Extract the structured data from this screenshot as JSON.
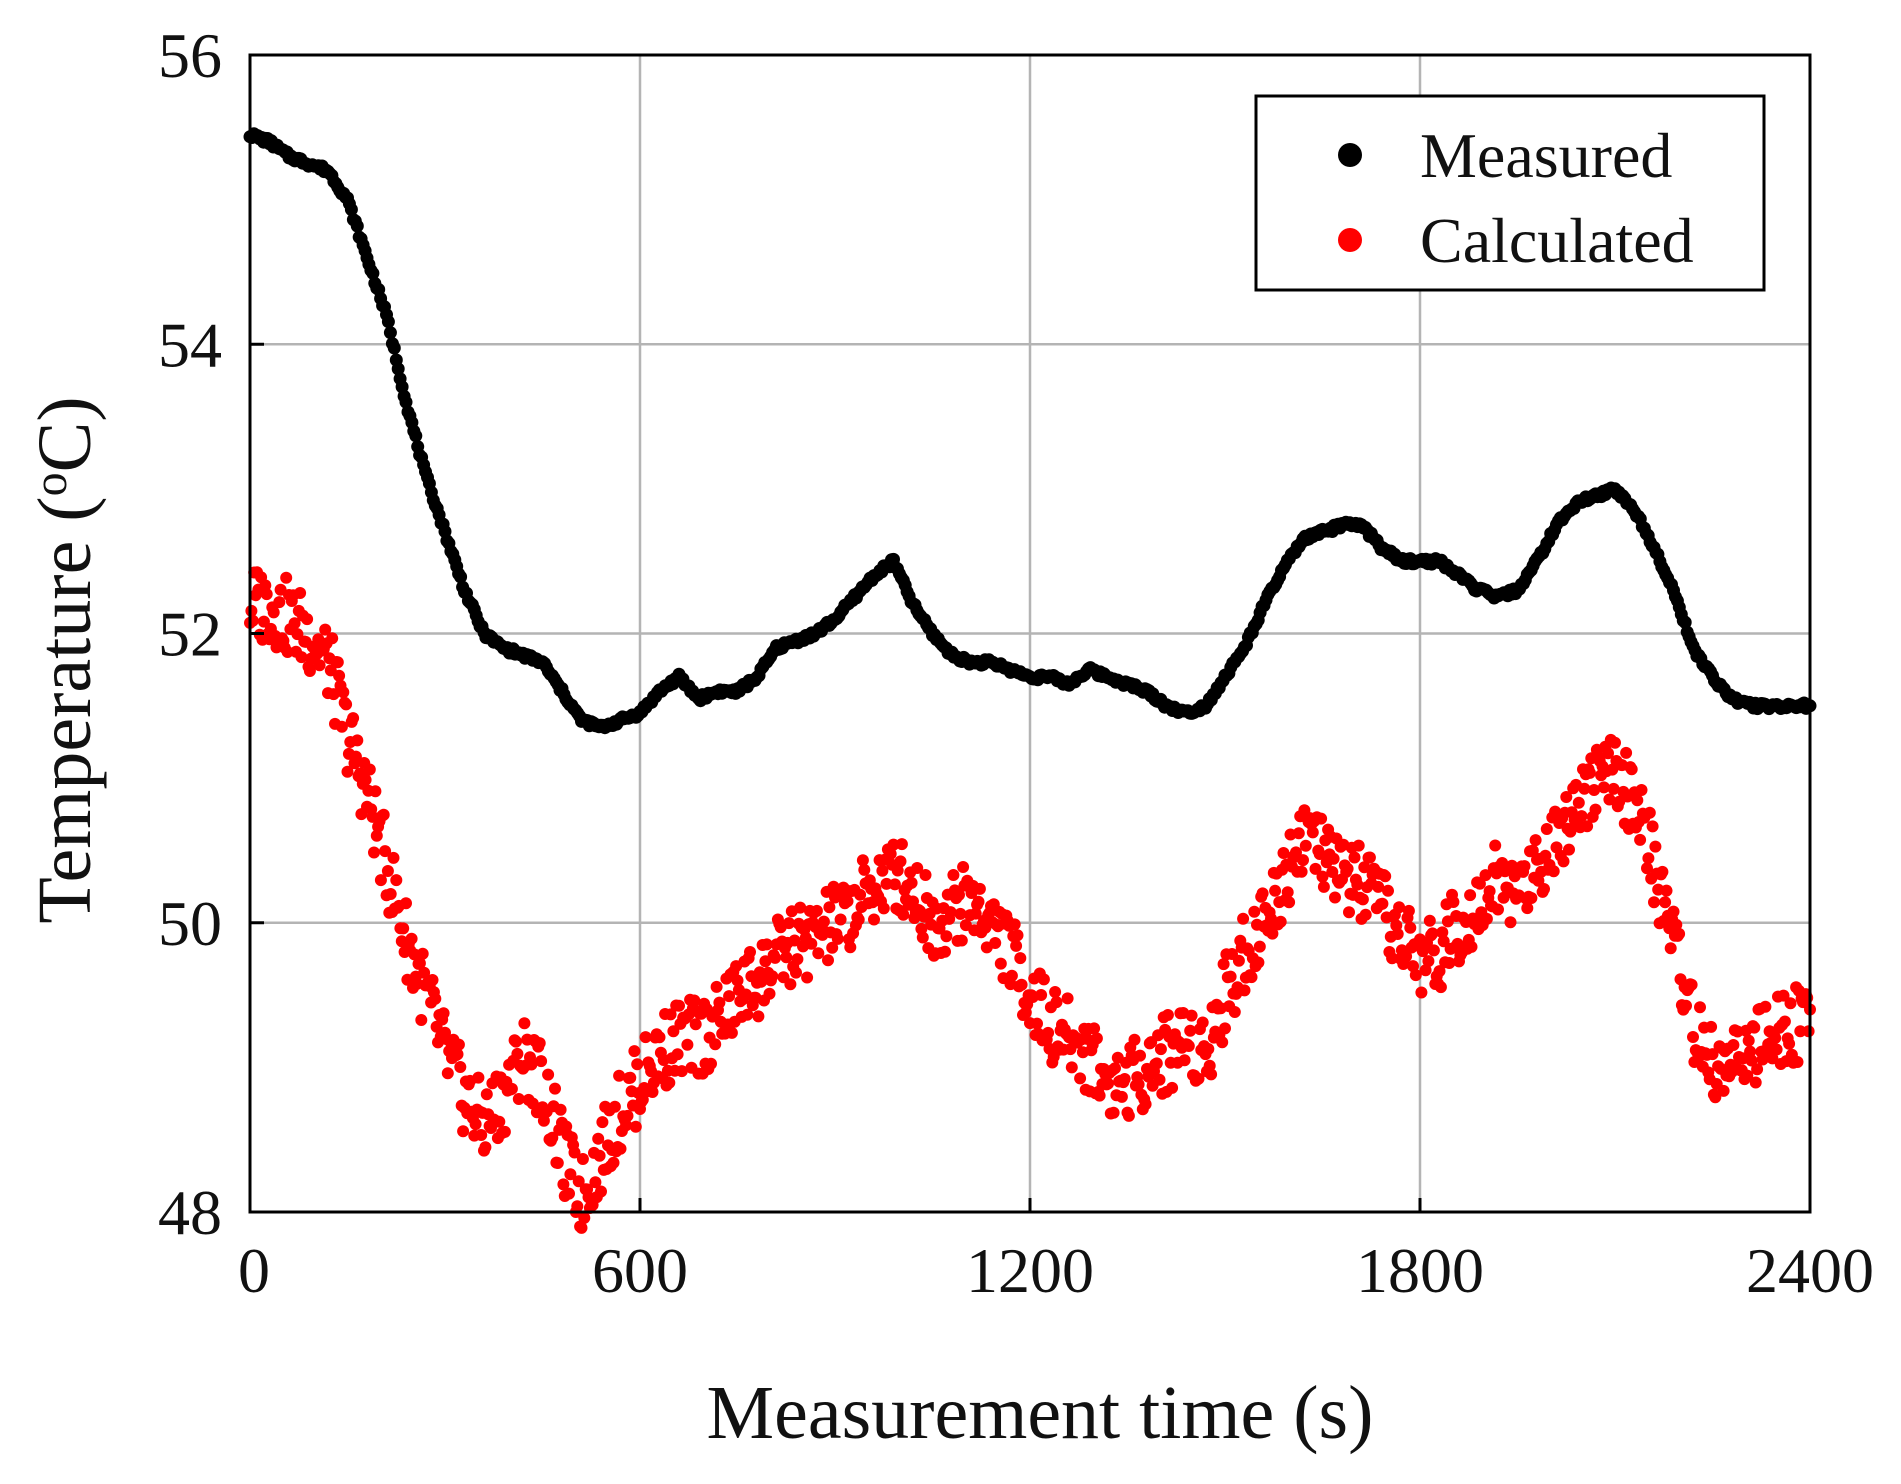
{
  "chart_data": {
    "type": "scatter",
    "title": "",
    "xlabel": "Measurement time (s)",
    "ylabel_main": "Temperature (",
    "ylabel_sup": "o",
    "ylabel_tail": "C)",
    "xlim": [
      0,
      2400
    ],
    "ylim": [
      48,
      56
    ],
    "grid": true,
    "legend_position": "top-right",
    "x_ticks": [
      {
        "value": 0,
        "label": "0"
      },
      {
        "value": 600,
        "label": "600"
      },
      {
        "value": 1200,
        "label": "1200"
      },
      {
        "value": 1800,
        "label": "1800"
      },
      {
        "value": 2400,
        "label": "2400"
      }
    ],
    "y_ticks": [
      {
        "value": 48,
        "label": "48"
      },
      {
        "value": 50,
        "label": "50"
      },
      {
        "value": 52,
        "label": "52"
      },
      {
        "value": 54,
        "label": "54"
      },
      {
        "value": 56,
        "label": "56"
      }
    ],
    "series": [
      {
        "name": "Measured",
        "color": "#000000",
        "x": [
          0,
          30,
          60,
          90,
          120,
          150,
          180,
          210,
          240,
          270,
          300,
          330,
          360,
          390,
          420,
          450,
          480,
          510,
          540,
          570,
          600,
          630,
          660,
          690,
          720,
          750,
          780,
          810,
          840,
          870,
          900,
          930,
          960,
          990,
          1020,
          1050,
          1080,
          1110,
          1140,
          1170,
          1200,
          1230,
          1260,
          1290,
          1320,
          1350,
          1380,
          1410,
          1440,
          1470,
          1500,
          1530,
          1560,
          1590,
          1620,
          1650,
          1680,
          1710,
          1740,
          1770,
          1800,
          1830,
          1860,
          1890,
          1920,
          1950,
          1980,
          2010,
          2040,
          2070,
          2100,
          2130,
          2160,
          2190,
          2220,
          2250,
          2280,
          2310,
          2340,
          2370,
          2400
        ],
        "y": [
          55.45,
          55.4,
          55.3,
          55.25,
          55.2,
          55.0,
          54.6,
          54.2,
          53.6,
          53.1,
          52.7,
          52.3,
          52.0,
          51.9,
          51.85,
          51.8,
          51.6,
          51.4,
          51.35,
          51.4,
          51.45,
          51.6,
          51.7,
          51.55,
          51.6,
          51.6,
          51.7,
          51.9,
          51.95,
          52.0,
          52.1,
          52.25,
          52.4,
          52.5,
          52.2,
          52.0,
          51.85,
          51.8,
          51.8,
          51.75,
          51.7,
          51.7,
          51.65,
          51.75,
          51.7,
          51.65,
          51.6,
          51.5,
          51.45,
          51.5,
          51.7,
          51.9,
          52.2,
          52.45,
          52.65,
          52.7,
          52.75,
          52.75,
          52.6,
          52.5,
          52.5,
          52.5,
          52.4,
          52.3,
          52.25,
          52.3,
          52.5,
          52.75,
          52.9,
          52.95,
          53.0,
          52.85,
          52.6,
          52.3,
          51.9,
          51.7,
          51.55,
          51.5,
          51.5,
          51.5,
          51.5
        ]
      },
      {
        "name": "Calculated",
        "color": "#ff0000",
        "x": [
          0,
          30,
          60,
          90,
          120,
          150,
          180,
          210,
          240,
          270,
          300,
          330,
          360,
          390,
          420,
          450,
          480,
          510,
          540,
          570,
          600,
          630,
          660,
          690,
          720,
          750,
          780,
          810,
          840,
          870,
          900,
          930,
          960,
          990,
          1020,
          1050,
          1080,
          1110,
          1140,
          1170,
          1200,
          1230,
          1260,
          1290,
          1320,
          1350,
          1380,
          1410,
          1440,
          1470,
          1500,
          1530,
          1560,
          1590,
          1620,
          1650,
          1680,
          1710,
          1740,
          1770,
          1800,
          1830,
          1860,
          1890,
          1920,
          1950,
          1980,
          2010,
          2040,
          2070,
          2100,
          2130,
          2160,
          2190,
          2220,
          2250,
          2280,
          2310,
          2340,
          2370,
          2400
        ],
        "y": [
          52.2,
          52.2,
          52.1,
          52.0,
          51.8,
          51.3,
          50.9,
          50.4,
          49.9,
          49.5,
          49.1,
          48.8,
          48.6,
          48.8,
          49.1,
          48.9,
          48.4,
          48.1,
          48.4,
          48.7,
          48.9,
          49.1,
          49.2,
          49.2,
          49.3,
          49.5,
          49.6,
          49.75,
          49.85,
          49.9,
          50.0,
          50.1,
          50.25,
          50.35,
          50.25,
          50.0,
          50.1,
          50.15,
          50.0,
          49.8,
          49.5,
          49.3,
          49.2,
          49.1,
          48.9,
          48.9,
          49.0,
          49.1,
          49.2,
          49.1,
          49.5,
          49.8,
          50.0,
          50.3,
          50.65,
          50.45,
          50.35,
          50.25,
          50.1,
          49.9,
          49.75,
          49.8,
          50.0,
          50.15,
          50.3,
          50.2,
          50.4,
          50.6,
          50.85,
          51.0,
          51.0,
          50.85,
          50.4,
          49.9,
          49.3,
          49.0,
          49.05,
          49.1,
          49.2,
          49.25,
          49.4
        ]
      }
    ]
  }
}
